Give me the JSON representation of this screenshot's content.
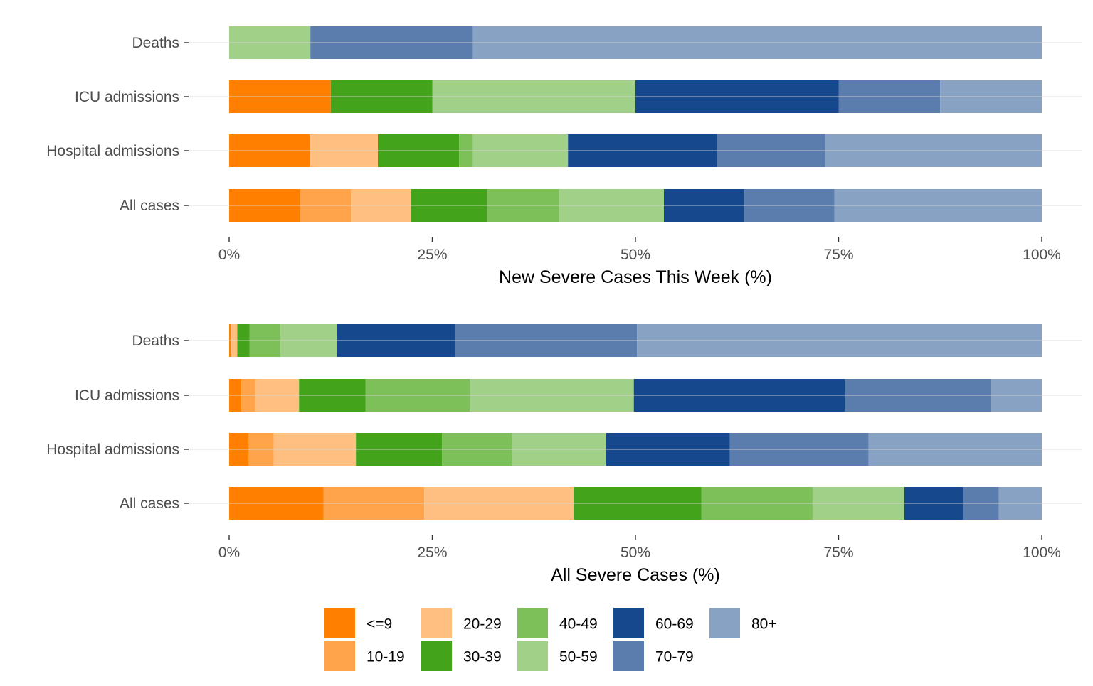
{
  "chart_data": [
    {
      "type": "bar",
      "orientation": "horizontal",
      "stacked": "percent",
      "xlabel": "New Severe Cases This Week (%)",
      "xlim": [
        0,
        100
      ],
      "xticks": [
        "0%",
        "25%",
        "50%",
        "75%",
        "100%"
      ],
      "categories": [
        "Deaths",
        "ICU admissions",
        "Hospital admissions",
        "All cases"
      ],
      "series": [
        {
          "name": "<=9",
          "values": [
            0,
            12.5,
            10.0,
            8.7
          ]
        },
        {
          "name": "10-19",
          "values": [
            0,
            0,
            0,
            6.3
          ]
        },
        {
          "name": "20-29",
          "values": [
            0,
            0,
            8.3,
            7.4
          ]
        },
        {
          "name": "30-39",
          "values": [
            0,
            12.5,
            10.0,
            9.3
          ]
        },
        {
          "name": "40-49",
          "values": [
            0,
            0,
            1.7,
            8.9
          ]
        },
        {
          "name": "50-59",
          "values": [
            10.0,
            25.0,
            11.7,
            12.9
          ]
        },
        {
          "name": "60-69",
          "values": [
            0,
            25.0,
            18.3,
            9.9
          ]
        },
        {
          "name": "70-79",
          "values": [
            20.0,
            12.5,
            13.3,
            11.1
          ]
        },
        {
          "name": "80+",
          "values": [
            70.0,
            12.5,
            26.7,
            25.5
          ]
        }
      ]
    },
    {
      "type": "bar",
      "orientation": "horizontal",
      "stacked": "percent",
      "xlabel": "All Severe Cases (%)",
      "xlim": [
        0,
        100
      ],
      "xticks": [
        "0%",
        "25%",
        "50%",
        "75%",
        "100%"
      ],
      "categories": [
        "Deaths",
        "ICU admissions",
        "Hospital admissions",
        "All cases"
      ],
      "series": [
        {
          "name": "<=9",
          "values": [
            0.2,
            1.5,
            2.4,
            11.6
          ]
        },
        {
          "name": "10-19",
          "values": [
            0,
            1.7,
            3.1,
            12.4
          ]
        },
        {
          "name": "20-29",
          "values": [
            0.8,
            5.4,
            10.1,
            18.4
          ]
        },
        {
          "name": "30-39",
          "values": [
            1.5,
            8.2,
            10.6,
            15.7
          ]
        },
        {
          "name": "40-49",
          "values": [
            3.8,
            12.8,
            8.6,
            13.7
          ]
        },
        {
          "name": "50-59",
          "values": [
            7.0,
            20.2,
            11.6,
            11.3
          ]
        },
        {
          "name": "60-69",
          "values": [
            14.5,
            26.0,
            15.2,
            7.2
          ]
        },
        {
          "name": "70-79",
          "values": [
            22.4,
            17.9,
            17.1,
            4.4
          ]
        },
        {
          "name": "80+",
          "values": [
            49.8,
            6.3,
            21.3,
            5.3
          ]
        }
      ]
    }
  ],
  "legend": [
    {
      "label": "<=9",
      "color": "#ff7f00"
    },
    {
      "label": "10-19",
      "color": "#ffa44a"
    },
    {
      "label": "20-29",
      "color": "#ffbf80"
    },
    {
      "label": "30-39",
      "color": "#43a31a"
    },
    {
      "label": "40-49",
      "color": "#7dc05a"
    },
    {
      "label": "50-59",
      "color": "#a1d188"
    },
    {
      "label": "60-69",
      "color": "#15488c"
    },
    {
      "label": "70-79",
      "color": "#5a7dae"
    },
    {
      "label": "80+",
      "color": "#88a2c4"
    }
  ]
}
